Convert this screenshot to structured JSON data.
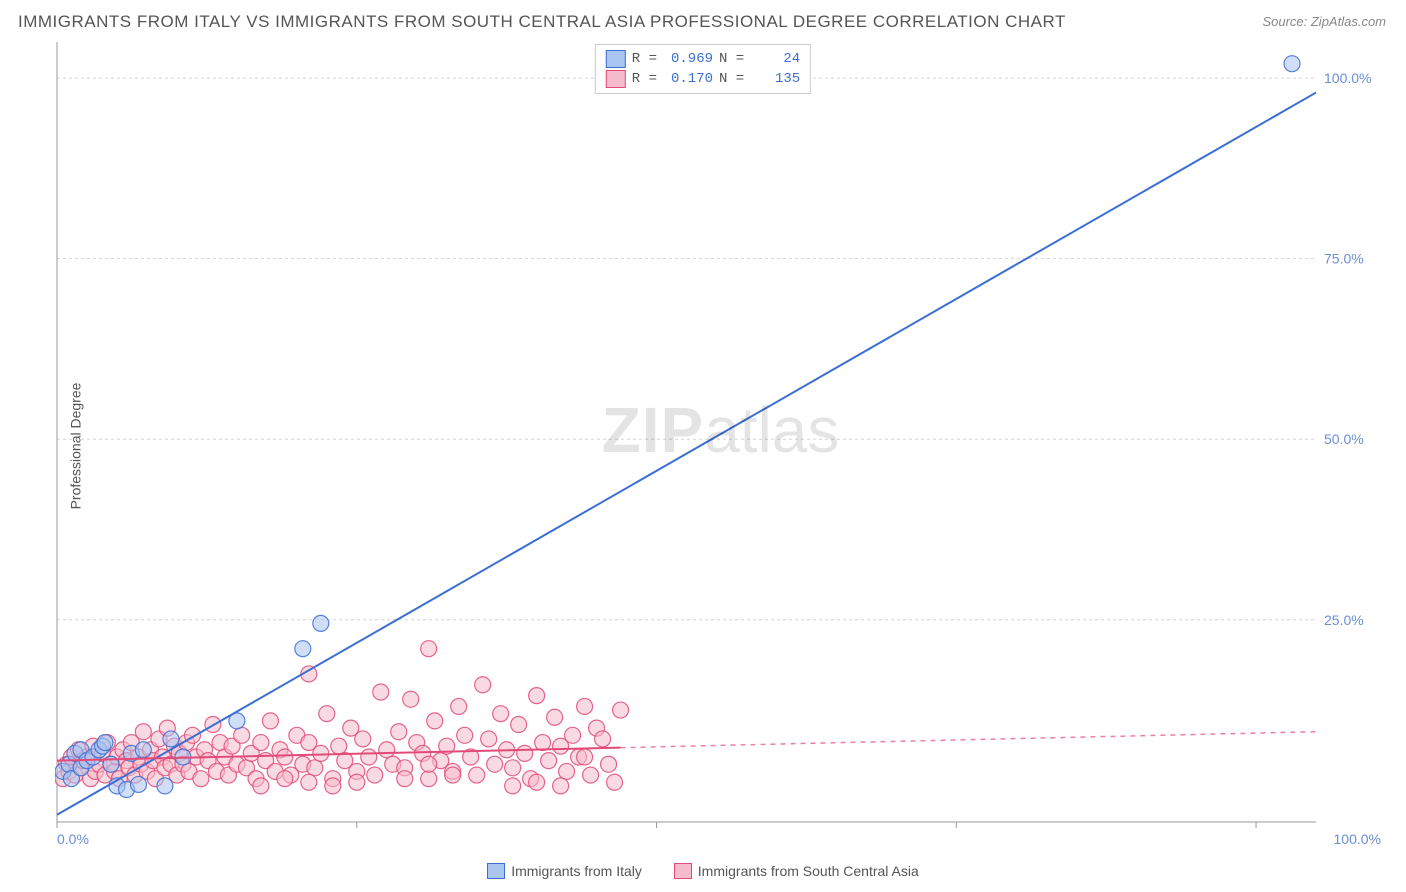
{
  "title": "IMMIGRANTS FROM ITALY VS IMMIGRANTS FROM SOUTH CENTRAL ASIA PROFESSIONAL DEGREE CORRELATION CHART",
  "source": "Source: ZipAtlas.com",
  "ylabel": "Professional Degree",
  "watermark": {
    "bold": "ZIP",
    "rest": "atlas"
  },
  "chart": {
    "type": "scatter",
    "xlim": [
      0,
      105
    ],
    "ylim": [
      -3,
      105
    ],
    "x_ticks": [
      0,
      25,
      50,
      75,
      100
    ],
    "y_ticks": [
      0,
      25,
      50,
      75,
      100
    ],
    "x_tick_labels": [
      "0.0%",
      "",
      "",
      "",
      "100.0%"
    ],
    "y_tick_labels": [
      "",
      "25.0%",
      "50.0%",
      "75.0%",
      "100.0%"
    ],
    "grid_color": "#d5d5d5",
    "axis_color": "#999999",
    "background_color": "#ffffff",
    "tick_label_color": "#6a8fd8",
    "marker_radius": 8,
    "marker_opacity": 0.55,
    "marker_stroke_width": 1.2,
    "trend_line_width": 2,
    "series": [
      {
        "name": "Immigrants from Italy",
        "color_fill": "#a9c5f0",
        "color_stroke": "#3b6fd4",
        "r": "0.969",
        "n": "24",
        "trend": {
          "x1": 0,
          "y1": -2,
          "x2": 105,
          "y2": 98,
          "dash_from_x": null
        },
        "points": [
          [
            0.5,
            4
          ],
          [
            1,
            5
          ],
          [
            1.2,
            3
          ],
          [
            1.5,
            6.5
          ],
          [
            2,
            7
          ],
          [
            2,
            4.5
          ],
          [
            2.5,
            5.5
          ],
          [
            3,
            6
          ],
          [
            3.5,
            7
          ],
          [
            3.8,
            7.5
          ],
          [
            4,
            8
          ],
          [
            4.5,
            5
          ],
          [
            5,
            2
          ],
          [
            5.8,
            1.5
          ],
          [
            6.2,
            6.5
          ],
          [
            6.8,
            2.2
          ],
          [
            7.2,
            7
          ],
          [
            9,
            2
          ],
          [
            9.5,
            8.5
          ],
          [
            10.5,
            6
          ],
          [
            15,
            11
          ],
          [
            20.5,
            21
          ],
          [
            22,
            24.5
          ],
          [
            103,
            102
          ]
        ]
      },
      {
        "name": "Immigrants from South Central Asia",
        "color_fill": "#f6bccb",
        "color_stroke": "#e24a77",
        "r": "0.170",
        "n": "135",
        "trend": {
          "x1": 0,
          "y1": 5.5,
          "x2": 105,
          "y2": 9.5,
          "dash_from_x": 47
        },
        "points": [
          [
            0.5,
            3
          ],
          [
            0.8,
            5
          ],
          [
            1,
            4
          ],
          [
            1.2,
            6
          ],
          [
            1.5,
            3.5
          ],
          [
            1.8,
            7
          ],
          [
            2,
            4.5
          ],
          [
            2.2,
            5.5
          ],
          [
            2.5,
            6
          ],
          [
            2.8,
            3
          ],
          [
            3,
            7.5
          ],
          [
            3.2,
            4
          ],
          [
            3.5,
            5
          ],
          [
            3.8,
            6.5
          ],
          [
            4,
            3.5
          ],
          [
            4.2,
            8
          ],
          [
            4.5,
            5
          ],
          [
            4.8,
            4
          ],
          [
            5,
            6
          ],
          [
            5.2,
            3
          ],
          [
            5.5,
            7
          ],
          [
            5.8,
            5.5
          ],
          [
            6,
            4.5
          ],
          [
            6.2,
            8
          ],
          [
            6.5,
            3.5
          ],
          [
            6.8,
            6
          ],
          [
            7,
            5
          ],
          [
            7.2,
            9.5
          ],
          [
            7.5,
            4
          ],
          [
            7.8,
            7
          ],
          [
            8,
            5.5
          ],
          [
            8.2,
            3
          ],
          [
            8.5,
            8.5
          ],
          [
            8.8,
            6
          ],
          [
            9,
            4.5
          ],
          [
            9.2,
            10
          ],
          [
            9.5,
            5
          ],
          [
            9.8,
            7.5
          ],
          [
            10,
            3.5
          ],
          [
            10.2,
            6.5
          ],
          [
            10.5,
            5
          ],
          [
            10.8,
            8
          ],
          [
            11,
            4
          ],
          [
            11.3,
            9
          ],
          [
            11.6,
            6
          ],
          [
            12,
            3
          ],
          [
            12.3,
            7
          ],
          [
            12.6,
            5.5
          ],
          [
            13,
            10.5
          ],
          [
            13.3,
            4
          ],
          [
            13.6,
            8
          ],
          [
            14,
            6
          ],
          [
            14.3,
            3.5
          ],
          [
            14.6,
            7.5
          ],
          [
            15,
            5
          ],
          [
            15.4,
            9
          ],
          [
            15.8,
            4.5
          ],
          [
            16.2,
            6.5
          ],
          [
            16.6,
            3
          ],
          [
            17,
            8
          ],
          [
            17.4,
            5.5
          ],
          [
            17.8,
            11
          ],
          [
            18.2,
            4
          ],
          [
            18.6,
            7
          ],
          [
            19,
            6
          ],
          [
            19.5,
            3.5
          ],
          [
            20,
            9
          ],
          [
            20.5,
            5
          ],
          [
            21,
            17.5
          ],
          [
            21,
            8
          ],
          [
            21.5,
            4.5
          ],
          [
            22,
            6.5
          ],
          [
            22.5,
            12
          ],
          [
            23,
            3
          ],
          [
            23.5,
            7.5
          ],
          [
            24,
            5.5
          ],
          [
            24.5,
            10
          ],
          [
            25,
            4
          ],
          [
            25.5,
            8.5
          ],
          [
            26,
            6
          ],
          [
            26.5,
            3.5
          ],
          [
            27,
            15
          ],
          [
            27.5,
            7
          ],
          [
            28,
            5
          ],
          [
            28.5,
            9.5
          ],
          [
            29,
            4.5
          ],
          [
            29.5,
            14
          ],
          [
            30,
            8
          ],
          [
            30.5,
            6.5
          ],
          [
            31,
            3
          ],
          [
            31,
            21
          ],
          [
            31.5,
            11
          ],
          [
            32,
            5.5
          ],
          [
            32.5,
            7.5
          ],
          [
            33,
            4
          ],
          [
            33.5,
            13
          ],
          [
            34,
            9
          ],
          [
            34.5,
            6
          ],
          [
            35,
            3.5
          ],
          [
            35.5,
            16
          ],
          [
            36,
            8.5
          ],
          [
            36.5,
            5
          ],
          [
            37,
            12
          ],
          [
            37.5,
            7
          ],
          [
            38,
            4.5
          ],
          [
            38.5,
            10.5
          ],
          [
            39,
            6.5
          ],
          [
            39.5,
            3
          ],
          [
            40,
            14.5
          ],
          [
            40.5,
            8
          ],
          [
            41,
            5.5
          ],
          [
            41.5,
            11.5
          ],
          [
            42,
            7.5
          ],
          [
            42.5,
            4
          ],
          [
            43,
            9
          ],
          [
            43.5,
            6
          ],
          [
            44,
            13
          ],
          [
            44.5,
            3.5
          ],
          [
            45,
            10
          ],
          [
            45.5,
            8.5
          ],
          [
            46,
            5
          ],
          [
            46.5,
            2.5
          ],
          [
            47,
            12.5
          ],
          [
            38,
            2
          ],
          [
            40,
            2.5
          ],
          [
            42,
            2
          ],
          [
            44,
            6
          ],
          [
            29,
            3
          ],
          [
            31,
            5
          ],
          [
            33,
            3.5
          ],
          [
            17,
            2
          ],
          [
            19,
            3
          ],
          [
            21,
            2.5
          ],
          [
            23,
            2
          ],
          [
            25,
            2.5
          ]
        ]
      }
    ]
  },
  "legend_top": {
    "rows": [
      {
        "swatch_fill": "#a9c5f0",
        "swatch_stroke": "#3b6fd4",
        "r_label": "R =",
        "r_val": "0.969",
        "n_label": "N =",
        "n_val": "24"
      },
      {
        "swatch_fill": "#f6bccb",
        "swatch_stroke": "#e24a77",
        "r_label": "R =",
        "r_val": "0.170",
        "n_label": "N =",
        "n_val": "135"
      }
    ]
  },
  "legend_bottom": {
    "items": [
      {
        "swatch_fill": "#a9c5f0",
        "swatch_stroke": "#3b6fd4",
        "label": "Immigrants from Italy"
      },
      {
        "swatch_fill": "#f6bccb",
        "swatch_stroke": "#e24a77",
        "label": "Immigrants from South Central Asia"
      }
    ]
  }
}
